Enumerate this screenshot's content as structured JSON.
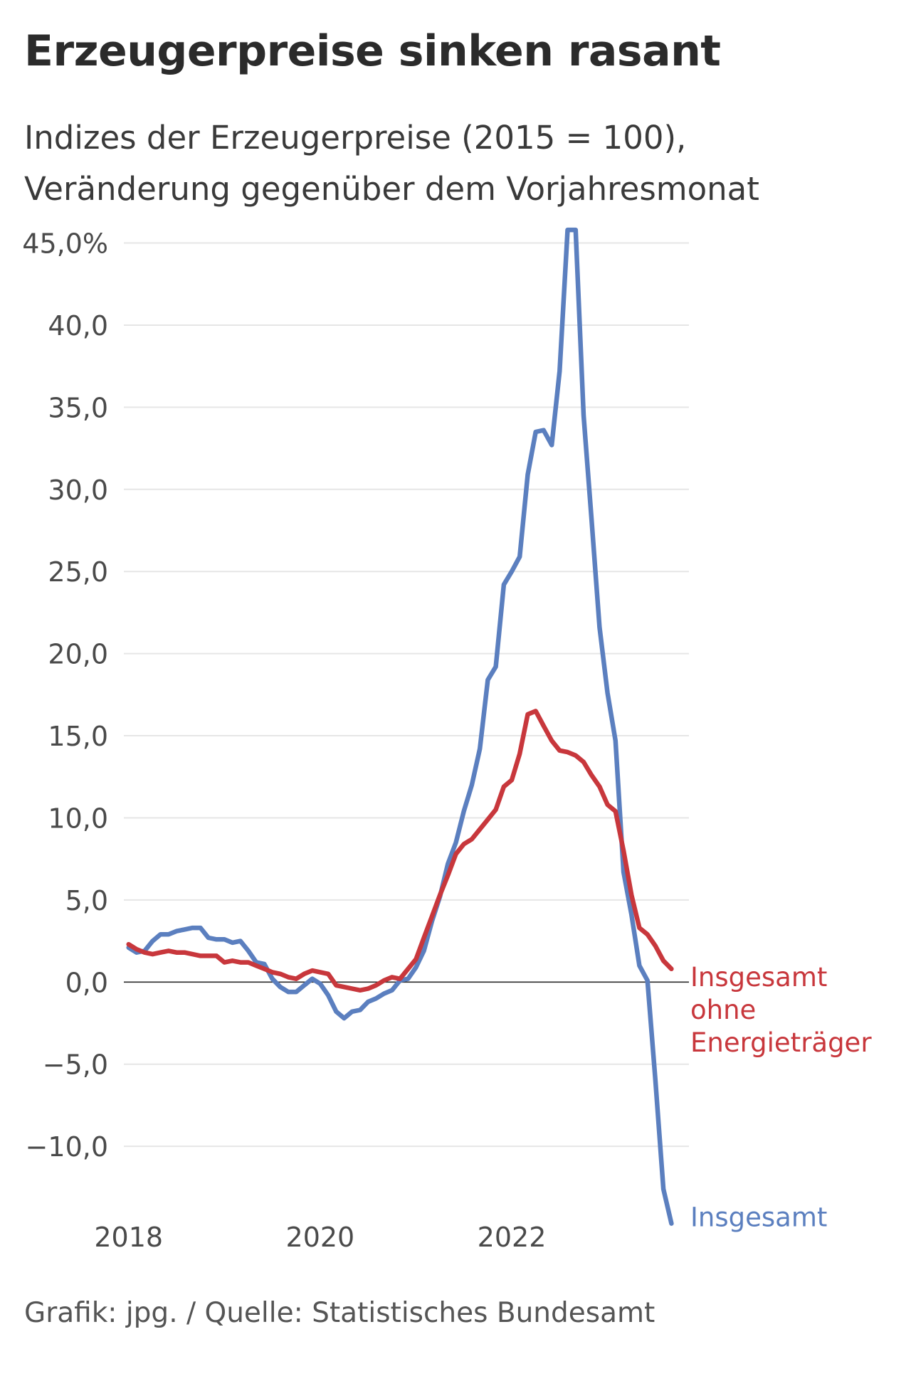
{
  "title": "Erzeugerpreise sinken rasant",
  "subtitle_lines": [
    "Indizes der Erzeugerpreise (2015 = 100),",
    "Veränderung gegenüber dem Vorjahresmonat"
  ],
  "footer": "Grafik: jpg. / Quelle: Statistisches Bundesamt",
  "chart_data": {
    "type": "line",
    "ylim": [
      -14.5,
      45.5
    ],
    "xlim": [
      2017.95,
      2023.85
    ],
    "grid": true,
    "y_ticks": [
      {
        "value": 45,
        "label": "45,0%"
      },
      {
        "value": 40,
        "label": "40,0"
      },
      {
        "value": 35,
        "label": "35,0"
      },
      {
        "value": 30,
        "label": "30,0"
      },
      {
        "value": 25,
        "label": "25,0"
      },
      {
        "value": 20,
        "label": "20,0"
      },
      {
        "value": 15,
        "label": "15,0"
      },
      {
        "value": 10,
        "label": "10,0"
      },
      {
        "value": 5,
        "label": "5,0"
      },
      {
        "value": 0,
        "label": "0,0"
      },
      {
        "value": -5,
        "label": "−5,0"
      },
      {
        "value": -10,
        "label": "−10,0"
      }
    ],
    "x_ticks": [
      {
        "value": 2018,
        "label": "2018"
      },
      {
        "value": 2020,
        "label": "2020"
      },
      {
        "value": 2022,
        "label": "2022"
      }
    ],
    "legend_placement": "inline-right",
    "series": [
      {
        "name": "Insgesamt",
        "label_lines": [
          "Insgesamt"
        ],
        "color": "#5b7fbf",
        "x": [
          2018.0,
          2018.083,
          2018.167,
          2018.25,
          2018.333,
          2018.417,
          2018.5,
          2018.583,
          2018.667,
          2018.75,
          2018.833,
          2018.917,
          2019.0,
          2019.083,
          2019.167,
          2019.25,
          2019.333,
          2019.417,
          2019.5,
          2019.583,
          2019.667,
          2019.75,
          2019.833,
          2019.917,
          2020.0,
          2020.083,
          2020.167,
          2020.25,
          2020.333,
          2020.417,
          2020.5,
          2020.583,
          2020.667,
          2020.75,
          2020.833,
          2020.917,
          2021.0,
          2021.083,
          2021.167,
          2021.25,
          2021.333,
          2021.417,
          2021.5,
          2021.583,
          2021.667,
          2021.75,
          2021.833,
          2021.917,
          2022.0,
          2022.083,
          2022.167,
          2022.25,
          2022.333,
          2022.417,
          2022.5,
          2022.583,
          2022.667,
          2022.75,
          2022.833,
          2022.917,
          2023.0,
          2023.083,
          2023.167,
          2023.25,
          2023.333,
          2023.417,
          2023.5,
          2023.583,
          2023.667
        ],
        "values": [
          2.1,
          1.8,
          1.9,
          2.5,
          2.9,
          2.9,
          3.1,
          3.2,
          3.3,
          3.3,
          2.7,
          2.6,
          2.6,
          2.4,
          2.5,
          1.9,
          1.2,
          1.1,
          0.2,
          -0.3,
          -0.6,
          -0.6,
          -0.2,
          0.2,
          -0.1,
          -0.8,
          -1.8,
          -2.2,
          -1.8,
          -1.7,
          -1.2,
          -1.0,
          -0.7,
          -0.5,
          0.1,
          0.2,
          0.9,
          1.9,
          3.7,
          5.2,
          7.2,
          8.5,
          10.4,
          12.0,
          14.2,
          18.4,
          19.2,
          24.2,
          25.0,
          25.9,
          30.9,
          33.5,
          33.6,
          32.7,
          37.2,
          45.8,
          45.8,
          34.5,
          28.2,
          21.6,
          17.6,
          14.7,
          6.7,
          4.1,
          1.0,
          0.1,
          -6.0,
          -12.6,
          -14.7
        ]
      },
      {
        "name": "Insgesamt ohne Energieträger",
        "label_lines": [
          "Insgesamt",
          "ohne",
          "Energieträger"
        ],
        "color": "#c8373c",
        "x": [
          2018.0,
          2018.083,
          2018.167,
          2018.25,
          2018.333,
          2018.417,
          2018.5,
          2018.583,
          2018.667,
          2018.75,
          2018.833,
          2018.917,
          2019.0,
          2019.083,
          2019.167,
          2019.25,
          2019.333,
          2019.417,
          2019.5,
          2019.583,
          2019.667,
          2019.75,
          2019.833,
          2019.917,
          2020.0,
          2020.083,
          2020.167,
          2020.25,
          2020.333,
          2020.417,
          2020.5,
          2020.583,
          2020.667,
          2020.75,
          2020.833,
          2020.917,
          2021.0,
          2021.083,
          2021.167,
          2021.25,
          2021.333,
          2021.417,
          2021.5,
          2021.583,
          2021.667,
          2021.75,
          2021.833,
          2021.917,
          2022.0,
          2022.083,
          2022.167,
          2022.25,
          2022.333,
          2022.417,
          2022.5,
          2022.583,
          2022.667,
          2022.75,
          2022.833,
          2022.917,
          2023.0,
          2023.083,
          2023.167,
          2023.25,
          2023.333,
          2023.417,
          2023.5,
          2023.583,
          2023.667
        ],
        "values": [
          2.3,
          2.0,
          1.8,
          1.7,
          1.8,
          1.9,
          1.8,
          1.8,
          1.7,
          1.6,
          1.6,
          1.6,
          1.2,
          1.3,
          1.2,
          1.2,
          1.0,
          0.8,
          0.6,
          0.5,
          0.3,
          0.2,
          0.5,
          0.7,
          0.6,
          0.5,
          -0.2,
          -0.3,
          -0.4,
          -0.5,
          -0.4,
          -0.2,
          0.1,
          0.3,
          0.2,
          0.8,
          1.4,
          2.7,
          4.0,
          5.3,
          6.5,
          7.8,
          8.4,
          8.7,
          9.3,
          9.9,
          10.5,
          11.9,
          12.3,
          13.9,
          16.3,
          16.5,
          15.6,
          14.7,
          14.1,
          14.0,
          13.8,
          13.4,
          12.6,
          11.9,
          10.8,
          10.4,
          8.0,
          5.3,
          3.3,
          2.9,
          2.2,
          1.3,
          0.8
        ]
      }
    ]
  }
}
